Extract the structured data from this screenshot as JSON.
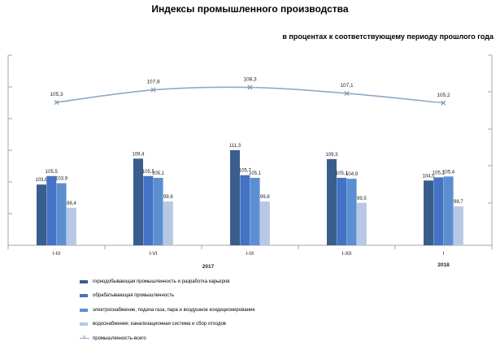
{
  "chart_data": {
    "type": "bar",
    "title": "Индексы промышленного  производства",
    "subtitle": "в процентах к соответствующему периоду прошлого года",
    "categories": [
      "I-III",
      "I-VI",
      "I-IX",
      "I-XII",
      "I"
    ],
    "year_labels": [
      "2017",
      "2018"
    ],
    "series": [
      {
        "name": "горнодобывающая промышленность  и разработка карьеров",
        "values": [
          103.6,
          109.4,
          111.3,
          109.3,
          104.5
        ],
        "color": "#3a5e8c"
      },
      {
        "name": "обрабатывающая промышленность",
        "values": [
          105.5,
          105.5,
          105.7,
          105.1,
          105.2
        ],
        "color": "#4472c4"
      },
      {
        "name": "электроснабжение,  подача газа, пара и воздушное кондиционирование",
        "values": [
          103.9,
          105.1,
          105.1,
          104.9,
          105.4
        ],
        "color": "#5b8fd0"
      },
      {
        "name": "водоснабжение;  канализационная  система  и сбор отходов",
        "values": [
          98.4,
          99.8,
          99.8,
          99.5,
          98.7
        ],
        "color": "#b8c8e4"
      }
    ],
    "line_series": {
      "name": "промышленность-всего",
      "values": [
        105.3,
        107.8,
        108.3,
        107.1,
        105.2
      ],
      "color": "#8fa9c4"
    },
    "labels": {
      "s0": [
        "103,6",
        "109,4",
        "111,3",
        "109,3",
        "104,5"
      ],
      "s1": [
        "105,5",
        "105,5",
        "105,7",
        "105,1",
        "105,2"
      ],
      "s2": [
        "103,9",
        "105,1",
        "105,1",
        "104,9",
        "105,4"
      ],
      "s3": [
        "98,4",
        "99,8",
        "99,8",
        "99,5",
        "98,7"
      ],
      "line": [
        "105,3",
        "107,8",
        "108,3",
        "107,1",
        "105,2"
      ]
    },
    "grid": true,
    "legend": "bottom"
  }
}
